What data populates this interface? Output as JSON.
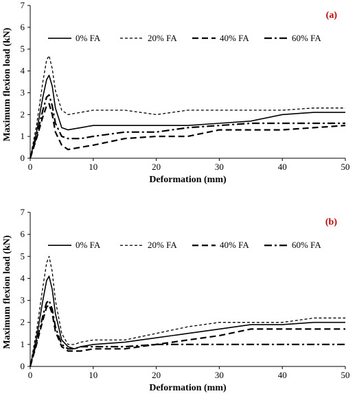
{
  "chart_data": [
    {
      "type": "line",
      "panel_label": "(a)",
      "xlabel": "Deformation (mm)",
      "ylabel": "Maximum flexion load (kN)",
      "xlim": [
        0,
        50
      ],
      "ylim": [
        0,
        7
      ],
      "xticks": [
        0,
        10,
        20,
        30,
        40,
        50
      ],
      "yticks": [
        0,
        1,
        2,
        3,
        4,
        5,
        6,
        7
      ],
      "grid": false,
      "legend": "top",
      "series": [
        {
          "name": "0% FA",
          "style": "solid",
          "x": [
            0,
            1,
            2,
            2.6,
            3,
            3.5,
            4,
            5,
            6,
            8,
            10,
            15,
            20,
            25,
            30,
            35,
            40,
            45,
            50
          ],
          "y": [
            0,
            1.2,
            2.8,
            3.6,
            3.8,
            3.3,
            2.3,
            1.4,
            1.3,
            1.4,
            1.5,
            1.5,
            1.5,
            1.5,
            1.6,
            1.7,
            2.0,
            2.1,
            2.1
          ]
        },
        {
          "name": "20% FA",
          "style": "dotted",
          "x": [
            0,
            1,
            2,
            2.6,
            3,
            3.5,
            4,
            5,
            6,
            8,
            10,
            15,
            20,
            25,
            30,
            35,
            40,
            45,
            50
          ],
          "y": [
            0,
            1.5,
            3.5,
            4.5,
            4.7,
            4.1,
            3.1,
            2.2,
            2.0,
            2.1,
            2.2,
            2.2,
            2.0,
            2.2,
            2.2,
            2.2,
            2.2,
            2.3,
            2.3
          ]
        },
        {
          "name": "40% FA",
          "style": "dashed",
          "x": [
            0,
            1,
            2,
            2.6,
            3,
            3.5,
            4,
            5,
            6,
            8,
            10,
            15,
            20,
            25,
            30,
            35,
            40,
            45,
            50
          ],
          "y": [
            0,
            0.9,
            1.9,
            2.4,
            2.5,
            2.0,
            1.2,
            0.6,
            0.4,
            0.5,
            0.6,
            0.9,
            1.0,
            1.0,
            1.3,
            1.3,
            1.3,
            1.4,
            1.5
          ]
        },
        {
          "name": "60% FA",
          "style": "dashdot",
          "x": [
            0,
            1,
            2,
            2.6,
            3,
            3.5,
            4,
            5,
            6,
            8,
            10,
            15,
            20,
            25,
            30,
            35,
            40,
            45,
            50
          ],
          "y": [
            0,
            1.0,
            2.2,
            2.8,
            2.9,
            2.4,
            1.6,
            1.0,
            0.9,
            0.9,
            1.0,
            1.2,
            1.2,
            1.4,
            1.5,
            1.6,
            1.6,
            1.6,
            1.6
          ]
        }
      ]
    },
    {
      "type": "line",
      "panel_label": "(b)",
      "xlabel": "Deformation (mm)",
      "ylabel": "Maximum flexion load (kN)",
      "xlim": [
        0,
        50
      ],
      "ylim": [
        0,
        7
      ],
      "xticks": [
        0,
        10,
        20,
        30,
        40,
        50
      ],
      "yticks": [
        0,
        1,
        2,
        3,
        4,
        5,
        6,
        7
      ],
      "grid": false,
      "legend": "top",
      "series": [
        {
          "name": "0% FA",
          "style": "solid",
          "x": [
            0,
            1,
            2,
            2.6,
            3,
            3.5,
            4,
            5,
            6,
            7,
            8,
            10,
            15,
            20,
            25,
            30,
            35,
            40,
            45,
            50
          ],
          "y": [
            0,
            1.3,
            3.0,
            3.9,
            4.1,
            3.5,
            2.4,
            1.2,
            0.9,
            0.8,
            0.9,
            1.0,
            1.1,
            1.3,
            1.5,
            1.7,
            1.9,
            1.9,
            2.0,
            2.0
          ]
        },
        {
          "name": "20% FA",
          "style": "dotted",
          "x": [
            0,
            1,
            2,
            2.6,
            3,
            3.5,
            4,
            5,
            6,
            7,
            8,
            10,
            15,
            20,
            25,
            30,
            35,
            40,
            45,
            50
          ],
          "y": [
            0,
            1.6,
            3.6,
            4.7,
            5.0,
            4.3,
            3.0,
            1.5,
            1.0,
            1.0,
            1.1,
            1.2,
            1.2,
            1.5,
            1.8,
            2.0,
            2.0,
            2.0,
            2.2,
            2.2
          ]
        },
        {
          "name": "40% FA",
          "style": "dashed",
          "x": [
            0,
            1,
            2,
            2.6,
            3,
            3.5,
            4,
            5,
            6,
            7,
            8,
            10,
            15,
            20,
            25,
            30,
            35,
            40,
            45,
            50
          ],
          "y": [
            0,
            1.0,
            2.1,
            2.7,
            2.8,
            2.4,
            1.6,
            0.9,
            0.7,
            0.7,
            0.7,
            0.8,
            0.8,
            1.0,
            1.2,
            1.4,
            1.7,
            1.7,
            1.7,
            1.7
          ]
        },
        {
          "name": "60% FA",
          "style": "dashdot",
          "x": [
            0,
            1,
            2,
            2.6,
            3,
            3.5,
            4,
            5,
            6,
            7,
            8,
            10,
            15,
            20,
            25,
            30,
            35,
            40,
            45,
            50
          ],
          "y": [
            0,
            1.1,
            2.3,
            2.9,
            3.0,
            2.6,
            1.8,
            1.0,
            0.8,
            0.8,
            0.9,
            0.9,
            0.9,
            1.0,
            1.0,
            1.0,
            1.0,
            1.0,
            1.0,
            1.0
          ]
        }
      ]
    }
  ]
}
